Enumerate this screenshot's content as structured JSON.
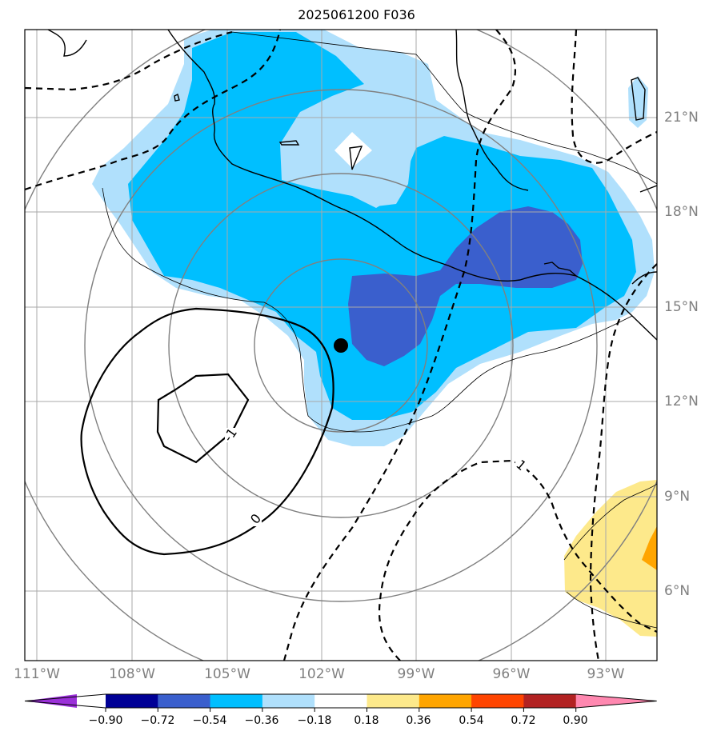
{
  "title": "2025061200 F036",
  "longitude_labels": [
    "111°W",
    "108°W",
    "105°W",
    "102°W",
    "99°W",
    "96°W",
    "93°W"
  ],
  "latitude_labels": [
    "21°N",
    "18°N",
    "15°N",
    "12°N",
    "9°N",
    "6°N"
  ],
  "contour_labels": [
    "1",
    "0",
    "-1"
  ],
  "colorbar": {
    "tick_labels": [
      "−0.90",
      "−0.72",
      "−0.54",
      "−0.36",
      "−0.18",
      "0.18",
      "0.36",
      "0.54",
      "0.72",
      "0.90"
    ],
    "colors": [
      "#9b30d9",
      "#000096",
      "#3a5fcd",
      "#00bfff",
      "#b0e0fc",
      "#ffffff",
      "#fde98b",
      "#ffa500",
      "#ff4500",
      "#b22222",
      "#ff88b0"
    ]
  },
  "colors": {
    "light_blue": "#b0e0fc",
    "deep_sky": "#00bfff",
    "royal_blue": "#3a5fcd",
    "pale_yellow": "#fde98b",
    "orange": "#ffa500",
    "grid": "#a9a9a9",
    "circle": "#808080"
  },
  "storm_center_marker": "black-dot"
}
